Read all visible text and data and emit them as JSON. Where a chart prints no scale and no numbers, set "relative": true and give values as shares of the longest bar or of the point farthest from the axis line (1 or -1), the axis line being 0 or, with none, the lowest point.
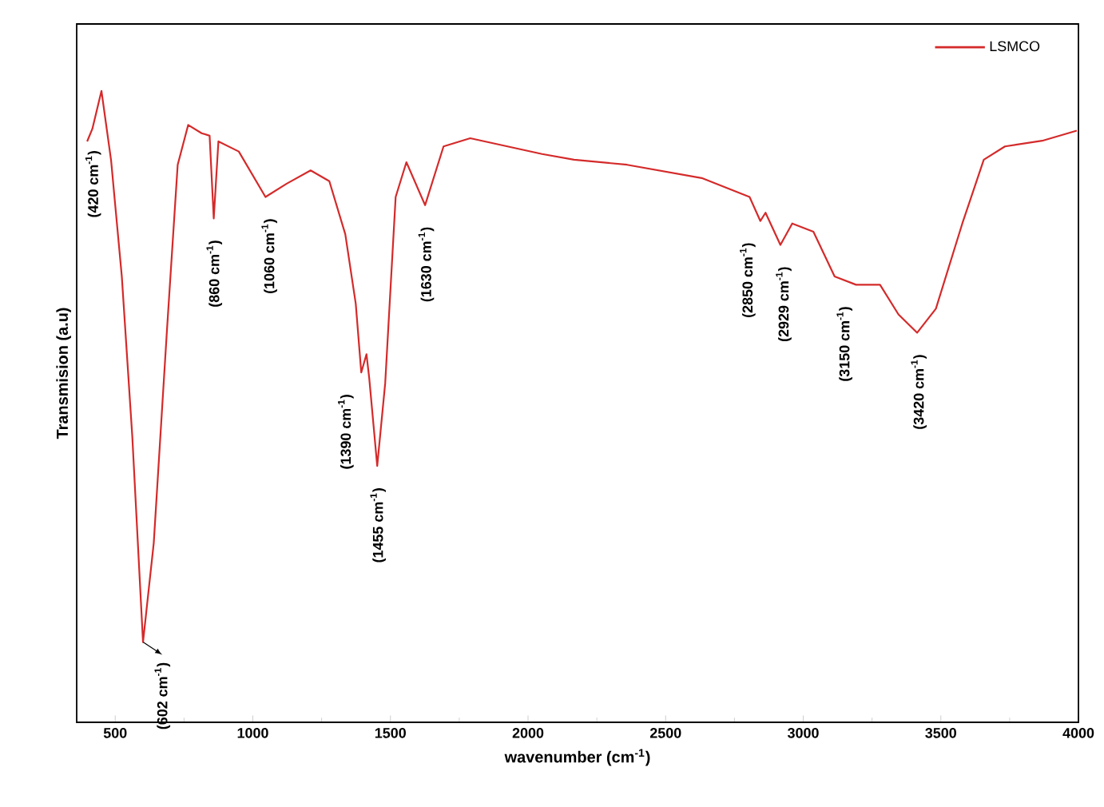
{
  "chart_data": {
    "type": "line",
    "relative": true,
    "xlabel": "wavenumber (cm$^{-1}$)",
    "ylabel": "Transmision (a.u)",
    "xlim": [
      360,
      4000
    ],
    "xticks": [
      500,
      1000,
      1500,
      2000,
      2500,
      3000,
      3500,
      4000
    ],
    "legend": "top right",
    "marker": "none",
    "line_style": "solid",
    "series": [
      {
        "name": "LSMCO",
        "color": "#d42a2a",
        "x": [
          398,
          417,
          450,
          485,
          524,
          562,
          601,
          640,
          688,
          727,
          765,
          814,
          843,
          858,
          875,
          949,
          1046,
          1123,
          1210,
          1278,
          1336,
          1374,
          1394,
          1413,
          1423,
          1452,
          1481,
          1519,
          1558,
          1626,
          1693,
          1790,
          2051,
          2167,
          2360,
          2631,
          2805,
          2844,
          2863,
          2917,
          2960,
          3037,
          3114,
          3192,
          3279,
          3346,
          3414,
          3482,
          3578,
          3656,
          3733,
          3868,
          3994
        ],
        "values": [
          0.92,
          0.94,
          1.0,
          0.89,
          0.706,
          0.453,
          0.127,
          0.284,
          0.621,
          0.883,
          0.946,
          0.933,
          0.929,
          0.798,
          0.92,
          0.904,
          0.832,
          0.853,
          0.874,
          0.857,
          0.773,
          0.663,
          0.554,
          0.583,
          0.545,
          0.406,
          0.537,
          0.832,
          0.887,
          0.819,
          0.912,
          0.925,
          0.9,
          0.891,
          0.883,
          0.862,
          0.832,
          0.794,
          0.807,
          0.756,
          0.79,
          0.777,
          0.706,
          0.693,
          0.693,
          0.646,
          0.617,
          0.655,
          0.79,
          0.891,
          0.912,
          0.921,
          0.937
        ]
      }
    ],
    "annotations": [
      {
        "text": "(420 cm$^{-1}$)",
        "x": 420,
        "y": 0.94
      },
      {
        "text": "(602 cm$^{-1}$)",
        "x": 602,
        "y": 0.127
      },
      {
        "text": "(860 cm$^{-1}$)",
        "x": 860,
        "y": 0.798
      },
      {
        "text": "(1060 cm$^{-1}$)",
        "x": 1060,
        "y": 0.832
      },
      {
        "text": "(1390 cm$^{-1}$)",
        "x": 1390,
        "y": 0.554
      },
      {
        "text": "(1455 cm$^{-1}$)",
        "x": 1455,
        "y": 0.406
      },
      {
        "text": "(1630 cm$^{-1}$)",
        "x": 1630,
        "y": 0.819
      },
      {
        "text": "(2850 cm$^{-1}$)",
        "x": 2850,
        "y": 0.794
      },
      {
        "text": "(2929 cm$^{-1}$)",
        "x": 2929,
        "y": 0.756
      },
      {
        "text": "(3150 cm$^{-1}$)",
        "x": 3150,
        "y": 0.693
      },
      {
        "text": "(3420 cm$^{-1}$)",
        "x": 3420,
        "y": 0.617
      }
    ]
  }
}
